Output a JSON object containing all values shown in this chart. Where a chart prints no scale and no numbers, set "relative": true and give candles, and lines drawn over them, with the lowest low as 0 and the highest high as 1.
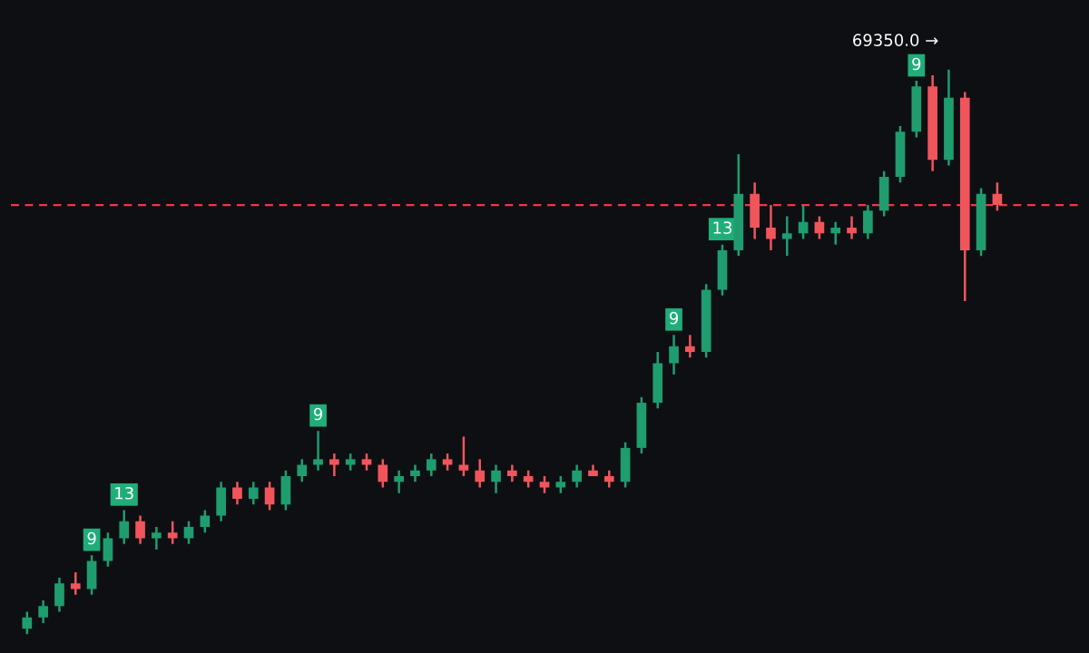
{
  "chart_data": {
    "type": "candlestick",
    "relative": true,
    "categories": [
      null,
      null,
      null,
      null,
      null,
      null,
      null,
      null,
      null,
      null,
      null,
      null,
      null,
      null,
      null,
      null,
      null,
      null,
      null,
      null,
      null,
      null,
      null,
      null,
      null,
      null,
      null,
      null,
      null,
      null,
      null,
      null,
      null,
      null,
      null,
      null,
      null,
      null,
      null,
      null,
      null,
      null,
      null,
      null,
      null,
      null,
      null,
      null,
      null,
      null,
      null,
      null,
      null,
      null,
      null,
      null,
      null,
      null,
      null,
      null,
      null
    ],
    "ohlc": [
      [
        0.01,
        0.04,
        0.0,
        0.03
      ],
      [
        0.03,
        0.06,
        0.02,
        0.05
      ],
      [
        0.05,
        0.1,
        0.04,
        0.09
      ],
      [
        0.09,
        0.11,
        0.07,
        0.08
      ],
      [
        0.08,
        0.14,
        0.07,
        0.13
      ],
      [
        0.13,
        0.18,
        0.12,
        0.17
      ],
      [
        0.17,
        0.22,
        0.16,
        0.2
      ],
      [
        0.2,
        0.21,
        0.16,
        0.17
      ],
      [
        0.17,
        0.19,
        0.15,
        0.18
      ],
      [
        0.18,
        0.2,
        0.16,
        0.17
      ],
      [
        0.17,
        0.2,
        0.16,
        0.19
      ],
      [
        0.19,
        0.22,
        0.18,
        0.21
      ],
      [
        0.21,
        0.27,
        0.2,
        0.26
      ],
      [
        0.26,
        0.27,
        0.23,
        0.24
      ],
      [
        0.24,
        0.27,
        0.23,
        0.26
      ],
      [
        0.26,
        0.27,
        0.22,
        0.23
      ],
      [
        0.23,
        0.29,
        0.22,
        0.28
      ],
      [
        0.28,
        0.31,
        0.27,
        0.3
      ],
      [
        0.3,
        0.36,
        0.29,
        0.31
      ],
      [
        0.31,
        0.32,
        0.28,
        0.3
      ],
      [
        0.3,
        0.32,
        0.29,
        0.31
      ],
      [
        0.31,
        0.32,
        0.29,
        0.3
      ],
      [
        0.3,
        0.31,
        0.26,
        0.27
      ],
      [
        0.27,
        0.29,
        0.25,
        0.28
      ],
      [
        0.28,
        0.3,
        0.27,
        0.29
      ],
      [
        0.29,
        0.32,
        0.28,
        0.31
      ],
      [
        0.31,
        0.32,
        0.29,
        0.3
      ],
      [
        0.3,
        0.35,
        0.28,
        0.29
      ],
      [
        0.29,
        0.31,
        0.26,
        0.27
      ],
      [
        0.27,
        0.3,
        0.25,
        0.29
      ],
      [
        0.29,
        0.3,
        0.27,
        0.28
      ],
      [
        0.28,
        0.29,
        0.26,
        0.27
      ],
      [
        0.27,
        0.28,
        0.25,
        0.26
      ],
      [
        0.26,
        0.28,
        0.25,
        0.27
      ],
      [
        0.27,
        0.3,
        0.26,
        0.29
      ],
      [
        0.29,
        0.3,
        0.28,
        0.28
      ],
      [
        0.28,
        0.29,
        0.26,
        0.27
      ],
      [
        0.27,
        0.34,
        0.26,
        0.33
      ],
      [
        0.33,
        0.42,
        0.32,
        0.41
      ],
      [
        0.41,
        0.5,
        0.4,
        0.48
      ],
      [
        0.48,
        0.53,
        0.46,
        0.51
      ],
      [
        0.51,
        0.53,
        0.49,
        0.5
      ],
      [
        0.5,
        0.62,
        0.49,
        0.61
      ],
      [
        0.61,
        0.69,
        0.6,
        0.68
      ],
      [
        0.68,
        0.85,
        0.67,
        0.78
      ],
      [
        0.78,
        0.8,
        0.7,
        0.72
      ],
      [
        0.72,
        0.76,
        0.68,
        0.7
      ],
      [
        0.7,
        0.74,
        0.67,
        0.71
      ],
      [
        0.71,
        0.76,
        0.7,
        0.73
      ],
      [
        0.73,
        0.74,
        0.7,
        0.71
      ],
      [
        0.71,
        0.73,
        0.69,
        0.72
      ],
      [
        0.72,
        0.74,
        0.7,
        0.71
      ],
      [
        0.71,
        0.76,
        0.7,
        0.75
      ],
      [
        0.75,
        0.82,
        0.74,
        0.81
      ],
      [
        0.81,
        0.9,
        0.8,
        0.89
      ],
      [
        0.89,
        0.98,
        0.88,
        0.97
      ],
      [
        0.97,
        0.99,
        0.82,
        0.84
      ],
      [
        0.84,
        1.0,
        0.83,
        0.95
      ],
      [
        0.95,
        0.96,
        0.59,
        0.68
      ],
      [
        0.68,
        0.79,
        0.67,
        0.78
      ],
      [
        0.78,
        0.8,
        0.75,
        0.76
      ]
    ],
    "ref_lines": [
      {
        "axis": "y",
        "value": 0.76,
        "label": null,
        "color": "#f23645",
        "line_style": "dashed"
      }
    ],
    "annotations": [
      {
        "text": "9",
        "y": 0.14
      },
      {
        "text": "13",
        "y": 0.22
      },
      {
        "text": "9",
        "y": 0.36
      },
      {
        "text": "9",
        "y": 0.53
      },
      {
        "text": "13",
        "y": 0.69
      },
      {
        "text": "9",
        "y": 0.98
      },
      "69350.0 →"
    ]
  }
}
